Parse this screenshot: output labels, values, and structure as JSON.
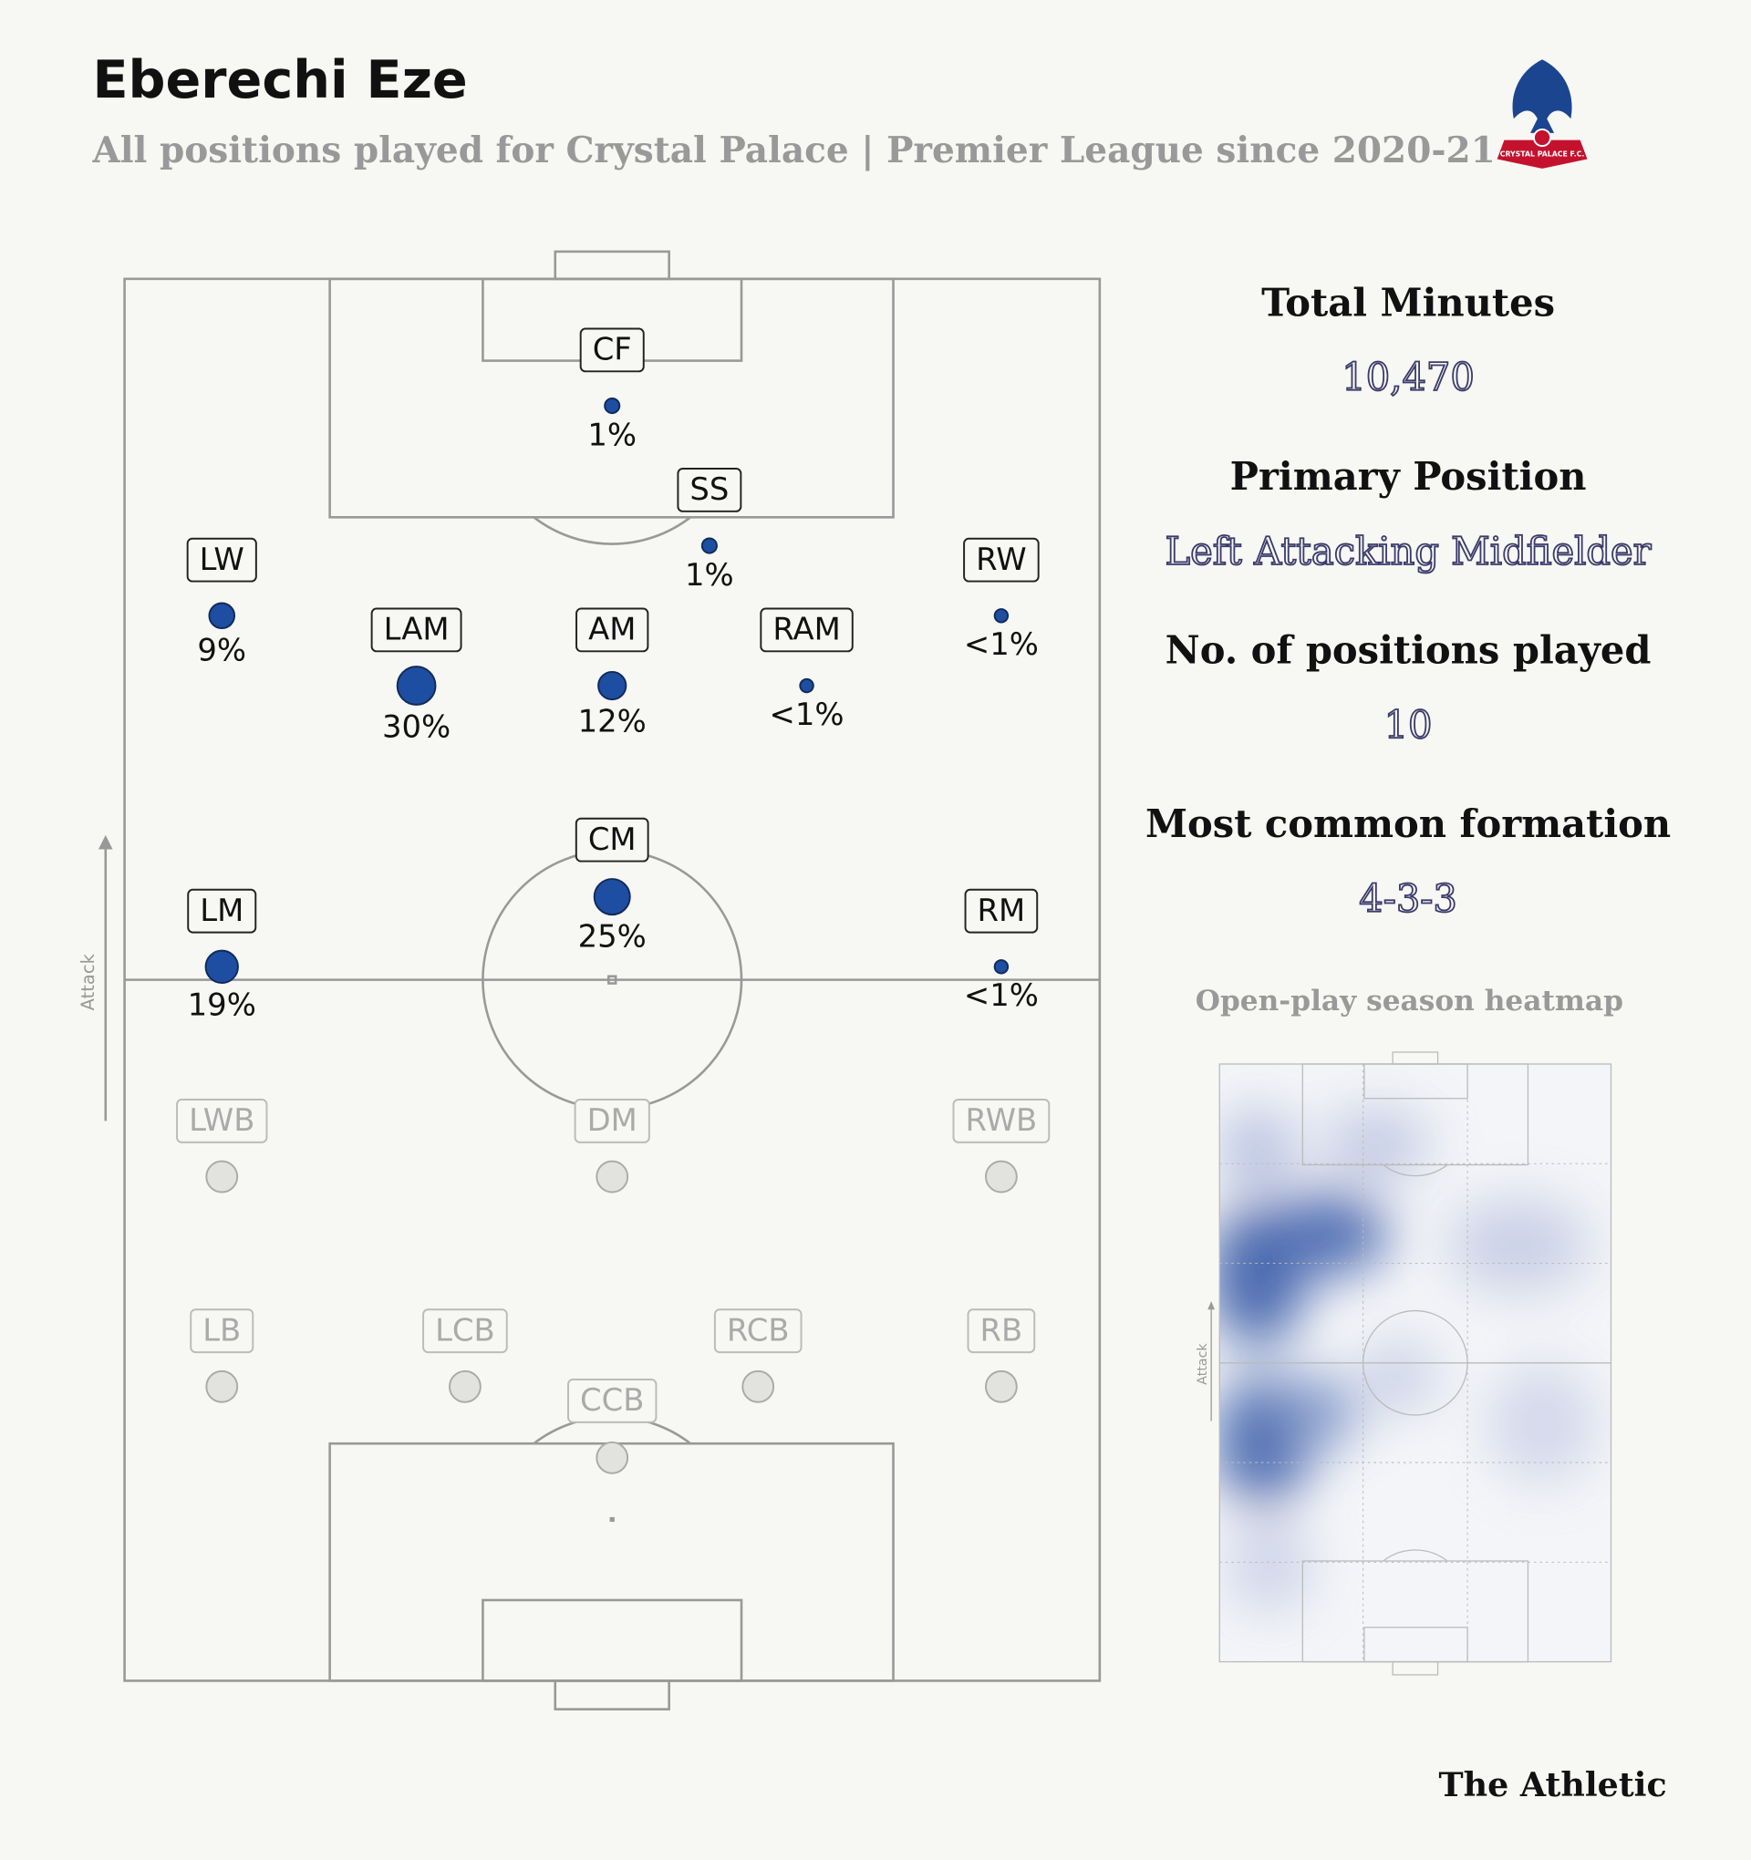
{
  "header": {
    "title": "Eberechi Eze",
    "subtitle": "All positions played for Crystal Palace | Premier League since 2020-21",
    "logo_text": "CRYSTAL PALACE F.C."
  },
  "pitch": {
    "direction_label": "Attack"
  },
  "positions": [
    {
      "label": "CF",
      "value": 1,
      "value_label": "1%"
    },
    {
      "label": "SS",
      "value": 1,
      "value_label": "1%"
    },
    {
      "label": "LW",
      "value": 9,
      "value_label": "9%"
    },
    {
      "label": "LAM",
      "value": 30,
      "value_label": "30%"
    },
    {
      "label": "AM",
      "value": 12,
      "value_label": "12%"
    },
    {
      "label": "RAM",
      "value": 0.5,
      "value_label": "<1%"
    },
    {
      "label": "RW",
      "value": 0.5,
      "value_label": "<1%"
    },
    {
      "label": "CM",
      "value": 25,
      "value_label": "25%"
    },
    {
      "label": "LM",
      "value": 19,
      "value_label": "19%"
    },
    {
      "label": "RM",
      "value": 0.5,
      "value_label": "<1%"
    },
    {
      "label": "LWB"
    },
    {
      "label": "DM"
    },
    {
      "label": "RWB"
    },
    {
      "label": "LB"
    },
    {
      "label": "LCB"
    },
    {
      "label": "RCB"
    },
    {
      "label": "RB"
    },
    {
      "label": "CCB"
    }
  ],
  "stats": [
    {
      "label": "Total Minutes",
      "value": "10,470"
    },
    {
      "label": "Primary Position",
      "value": "Left Attacking Midfielder"
    },
    {
      "label": "No. of positions played",
      "value": "10"
    },
    {
      "label": "Most common formation",
      "value": "4-3-3"
    }
  ],
  "heatmap": {
    "title": "Open-play season heatmap",
    "direction_label": "Attack"
  },
  "footer": {
    "brand": "The Athletic"
  }
}
